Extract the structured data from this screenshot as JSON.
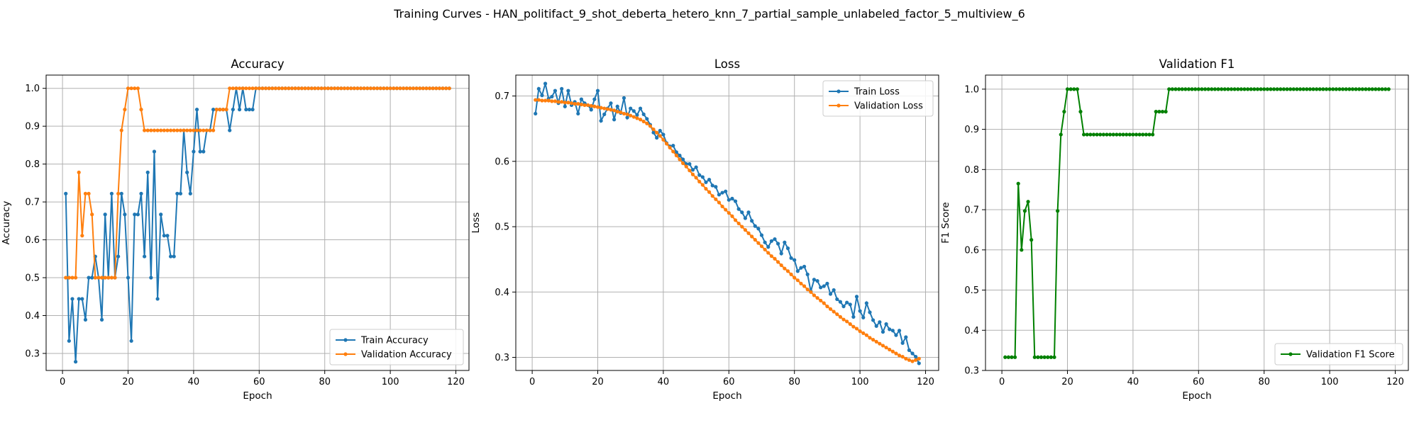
{
  "figure_title": "Training Curves - HAN_politifact_9_shot_deberta_hetero_knn_7_partial_sample_unlabeled_factor_5_multiview_6",
  "colors": {
    "train": "#1f77b4",
    "validation": "#ff7f0e",
    "f1": "#008000",
    "grid": "#b0b0b0"
  },
  "chart_data": [
    {
      "type": "line",
      "title": "Accuracy",
      "xlabel": "Epoch",
      "ylabel": "Accuracy",
      "xlim": [
        -5,
        124
      ],
      "ylim": [
        0.255,
        1.035
      ],
      "xticks": [
        0,
        20,
        40,
        60,
        80,
        100,
        120
      ],
      "yticks": [
        0.3,
        0.4,
        0.5,
        0.6,
        0.7,
        0.8,
        0.9,
        1.0
      ],
      "ytick_labels": [
        "0.3",
        "0.4",
        "0.5",
        "0.6",
        "0.7",
        "0.8",
        "0.9",
        "1.0"
      ],
      "grid": true,
      "legend_position": "lower-right",
      "x_start": 1,
      "series": [
        {
          "name": "Train Accuracy",
          "color_key": "train",
          "values": [
            0.722,
            0.333,
            0.444,
            0.278,
            0.444,
            0.444,
            0.389,
            0.5,
            0.5,
            0.556,
            0.5,
            0.389,
            0.667,
            0.5,
            0.722,
            0.5,
            0.556,
            0.722,
            0.667,
            0.5,
            0.333,
            0.667,
            0.667,
            0.722,
            0.556,
            0.778,
            0.5,
            0.833,
            0.444,
            0.667,
            0.611,
            0.611,
            0.556,
            0.556,
            0.722,
            0.722,
            0.889,
            0.778,
            0.722,
            0.833,
            0.944,
            0.833,
            0.833,
            0.889,
            0.889,
            0.944,
            0.944,
            0.944,
            0.944,
            0.944,
            0.889,
            0.944,
            1.0,
            0.944,
            1.0,
            0.944,
            0.944,
            0.944,
            1.0,
            1.0,
            1.0,
            1.0,
            1.0,
            1.0,
            1.0,
            1.0,
            1.0,
            1.0,
            1.0,
            1.0,
            1.0,
            1.0,
            1.0,
            1.0,
            1.0,
            1.0,
            1.0,
            1.0,
            1.0,
            1.0,
            1.0,
            1.0,
            1.0,
            1.0,
            1.0,
            1.0,
            1.0,
            1.0,
            1.0,
            1.0,
            1.0,
            1.0,
            1.0,
            1.0,
            1.0,
            1.0,
            1.0,
            1.0,
            1.0,
            1.0,
            1.0,
            1.0,
            1.0,
            1.0,
            1.0,
            1.0,
            1.0,
            1.0,
            1.0,
            1.0,
            1.0,
            1.0,
            1.0,
            1.0,
            1.0,
            1.0,
            1.0,
            1.0
          ]
        },
        {
          "name": "Validation Accuracy",
          "color_key": "validation",
          "values": [
            0.5,
            0.5,
            0.5,
            0.5,
            0.778,
            0.611,
            0.722,
            0.722,
            0.667,
            0.5,
            0.5,
            0.5,
            0.5,
            0.5,
            0.5,
            0.5,
            0.722,
            0.889,
            0.944,
            1.0,
            1.0,
            1.0,
            1.0,
            0.944,
            0.889,
            0.889,
            0.889,
            0.889,
            0.889,
            0.889,
            0.889,
            0.889,
            0.889,
            0.889,
            0.889,
            0.889,
            0.889,
            0.889,
            0.889,
            0.889,
            0.889,
            0.889,
            0.889,
            0.889,
            0.889,
            0.889,
            0.944,
            0.944,
            0.944,
            0.944,
            1.0,
            1.0,
            1.0,
            1.0,
            1.0,
            1.0,
            1.0,
            1.0,
            1.0,
            1.0,
            1.0,
            1.0,
            1.0,
            1.0,
            1.0,
            1.0,
            1.0,
            1.0,
            1.0,
            1.0,
            1.0,
            1.0,
            1.0,
            1.0,
            1.0,
            1.0,
            1.0,
            1.0,
            1.0,
            1.0,
            1.0,
            1.0,
            1.0,
            1.0,
            1.0,
            1.0,
            1.0,
            1.0,
            1.0,
            1.0,
            1.0,
            1.0,
            1.0,
            1.0,
            1.0,
            1.0,
            1.0,
            1.0,
            1.0,
            1.0,
            1.0,
            1.0,
            1.0,
            1.0,
            1.0,
            1.0,
            1.0,
            1.0,
            1.0,
            1.0,
            1.0,
            1.0,
            1.0,
            1.0,
            1.0,
            1.0,
            1.0,
            1.0
          ]
        }
      ]
    },
    {
      "type": "line",
      "title": "Loss",
      "xlabel": "Epoch",
      "ylabel": "Loss",
      "xlim": [
        -5,
        124
      ],
      "ylim": [
        0.28,
        0.732
      ],
      "xticks": [
        0,
        20,
        40,
        60,
        80,
        100,
        120
      ],
      "yticks": [
        0.3,
        0.4,
        0.5,
        0.6,
        0.7
      ],
      "ytick_labels": [
        "0.3",
        "0.4",
        "0.5",
        "0.6",
        "0.7"
      ],
      "grid": true,
      "legend_position": "upper-right",
      "x_start": 1,
      "series": [
        {
          "name": "Train Loss",
          "color_key": "train",
          "values": [
            0.673,
            0.711,
            0.701,
            0.719,
            0.696,
            0.699,
            0.708,
            0.689,
            0.711,
            0.684,
            0.708,
            0.686,
            0.691,
            0.673,
            0.695,
            0.689,
            0.686,
            0.679,
            0.695,
            0.708,
            0.662,
            0.672,
            0.681,
            0.689,
            0.664,
            0.684,
            0.674,
            0.697,
            0.667,
            0.681,
            0.677,
            0.671,
            0.681,
            0.672,
            0.665,
            0.656,
            0.644,
            0.636,
            0.647,
            0.641,
            0.628,
            0.623,
            0.624,
            0.614,
            0.609,
            0.603,
            0.596,
            0.596,
            0.587,
            0.591,
            0.579,
            0.576,
            0.568,
            0.572,
            0.563,
            0.561,
            0.549,
            0.552,
            0.554,
            0.541,
            0.543,
            0.539,
            0.527,
            0.522,
            0.513,
            0.522,
            0.509,
            0.501,
            0.497,
            0.487,
            0.476,
            0.469,
            0.478,
            0.481,
            0.474,
            0.459,
            0.476,
            0.467,
            0.452,
            0.449,
            0.432,
            0.437,
            0.439,
            0.427,
            0.401,
            0.419,
            0.417,
            0.407,
            0.409,
            0.413,
            0.397,
            0.403,
            0.389,
            0.385,
            0.378,
            0.384,
            0.381,
            0.362,
            0.393,
            0.371,
            0.361,
            0.383,
            0.369,
            0.357,
            0.348,
            0.354,
            0.339,
            0.351,
            0.343,
            0.341,
            0.334,
            0.341,
            0.322,
            0.331,
            0.311,
            0.306,
            0.301,
            0.291
          ]
        },
        {
          "name": "Validation Loss",
          "color_key": "validation",
          "values": [
            0.694,
            0.694,
            0.693,
            0.693,
            0.693,
            0.692,
            0.692,
            0.691,
            0.691,
            0.69,
            0.69,
            0.689,
            0.688,
            0.688,
            0.687,
            0.686,
            0.686,
            0.685,
            0.684,
            0.683,
            0.682,
            0.681,
            0.68,
            0.679,
            0.678,
            0.676,
            0.675,
            0.673,
            0.672,
            0.67,
            0.668,
            0.666,
            0.664,
            0.661,
            0.658,
            0.654,
            0.649,
            0.644,
            0.639,
            0.633,
            0.627,
            0.621,
            0.615,
            0.609,
            0.603,
            0.597,
            0.592,
            0.586,
            0.58,
            0.575,
            0.569,
            0.564,
            0.558,
            0.553,
            0.547,
            0.542,
            0.537,
            0.531,
            0.526,
            0.521,
            0.516,
            0.51,
            0.505,
            0.5,
            0.495,
            0.49,
            0.485,
            0.48,
            0.475,
            0.47,
            0.465,
            0.46,
            0.455,
            0.451,
            0.446,
            0.441,
            0.436,
            0.432,
            0.427,
            0.422,
            0.418,
            0.413,
            0.409,
            0.404,
            0.4,
            0.395,
            0.391,
            0.387,
            0.383,
            0.378,
            0.374,
            0.37,
            0.366,
            0.362,
            0.358,
            0.355,
            0.351,
            0.347,
            0.344,
            0.34,
            0.337,
            0.334,
            0.33,
            0.327,
            0.324,
            0.321,
            0.318,
            0.315,
            0.312,
            0.309,
            0.306,
            0.303,
            0.301,
            0.298,
            0.296,
            0.294,
            0.296,
            0.298
          ]
        }
      ]
    },
    {
      "type": "line",
      "title": "Validation F1",
      "xlabel": "Epoch",
      "ylabel": "F1 Score",
      "xlim": [
        -5,
        124
      ],
      "ylim": [
        0.3,
        1.035
      ],
      "xticks": [
        0,
        20,
        40,
        60,
        80,
        100,
        120
      ],
      "yticks": [
        0.3,
        0.4,
        0.5,
        0.6,
        0.7,
        0.8,
        0.9,
        1.0
      ],
      "ytick_labels": [
        "0.3",
        "0.4",
        "0.5",
        "0.6",
        "0.7",
        "0.8",
        "0.9",
        "1.0"
      ],
      "grid": true,
      "legend_position": "lower-right",
      "x_start": 1,
      "series": [
        {
          "name": "Validation F1 Score",
          "color_key": "f1",
          "values": [
            0.333,
            0.333,
            0.333,
            0.333,
            0.765,
            0.6,
            0.697,
            0.72,
            0.625,
            0.333,
            0.333,
            0.333,
            0.333,
            0.333,
            0.333,
            0.333,
            0.697,
            0.887,
            0.944,
            1.0,
            1.0,
            1.0,
            1.0,
            0.944,
            0.887,
            0.887,
            0.887,
            0.887,
            0.887,
            0.887,
            0.887,
            0.887,
            0.887,
            0.887,
            0.887,
            0.887,
            0.887,
            0.887,
            0.887,
            0.887,
            0.887,
            0.887,
            0.887,
            0.887,
            0.887,
            0.887,
            0.944,
            0.944,
            0.944,
            0.944,
            1.0,
            1.0,
            1.0,
            1.0,
            1.0,
            1.0,
            1.0,
            1.0,
            1.0,
            1.0,
            1.0,
            1.0,
            1.0,
            1.0,
            1.0,
            1.0,
            1.0,
            1.0,
            1.0,
            1.0,
            1.0,
            1.0,
            1.0,
            1.0,
            1.0,
            1.0,
            1.0,
            1.0,
            1.0,
            1.0,
            1.0,
            1.0,
            1.0,
            1.0,
            1.0,
            1.0,
            1.0,
            1.0,
            1.0,
            1.0,
            1.0,
            1.0,
            1.0,
            1.0,
            1.0,
            1.0,
            1.0,
            1.0,
            1.0,
            1.0,
            1.0,
            1.0,
            1.0,
            1.0,
            1.0,
            1.0,
            1.0,
            1.0,
            1.0,
            1.0,
            1.0,
            1.0,
            1.0,
            1.0,
            1.0,
            1.0,
            1.0,
            1.0
          ]
        }
      ]
    }
  ]
}
